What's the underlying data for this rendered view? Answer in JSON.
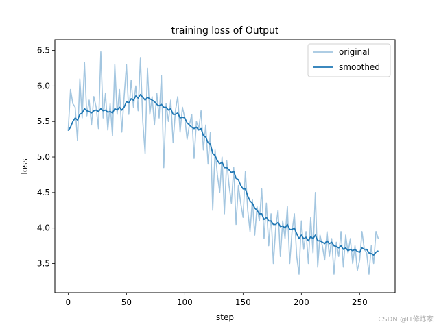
{
  "chart_data": {
    "type": "line",
    "title": "training loss of Output",
    "xlabel": "step",
    "ylabel": "loss",
    "xlim": [
      -11.4,
      280.4
    ],
    "ylim": [
      3.09,
      6.65
    ],
    "xticks": [
      0,
      50,
      100,
      150,
      200,
      250
    ],
    "yticks": [
      3.5,
      4.0,
      4.5,
      5.0,
      5.5,
      6.0,
      6.5
    ],
    "legend_position": "top-right",
    "grid": false,
    "series": [
      {
        "name": "original",
        "color": "#a3c6e0",
        "x": [
          0,
          2,
          4,
          6,
          8,
          10,
          12,
          14,
          16,
          18,
          20,
          22,
          24,
          26,
          28,
          30,
          32,
          34,
          36,
          38,
          40,
          42,
          44,
          46,
          48,
          50,
          52,
          54,
          56,
          58,
          60,
          62,
          64,
          66,
          68,
          70,
          72,
          74,
          76,
          78,
          80,
          82,
          84,
          86,
          88,
          90,
          92,
          94,
          96,
          98,
          100,
          102,
          104,
          106,
          108,
          110,
          112,
          114,
          116,
          118,
          120,
          122,
          124,
          126,
          128,
          130,
          132,
          134,
          136,
          138,
          140,
          142,
          144,
          146,
          148,
          150,
          152,
          154,
          156,
          158,
          160,
          162,
          164,
          166,
          168,
          170,
          172,
          174,
          176,
          178,
          180,
          182,
          184,
          186,
          188,
          190,
          192,
          194,
          196,
          198,
          200,
          202,
          204,
          206,
          208,
          210,
          212,
          214,
          216,
          218,
          220,
          222,
          224,
          226,
          228,
          230,
          232,
          234,
          236,
          238,
          240,
          242,
          244,
          246,
          248,
          250,
          252,
          254,
          256,
          258,
          260,
          262,
          264,
          266
        ],
        "values": [
          5.37,
          5.95,
          5.75,
          5.7,
          5.23,
          6.1,
          5.55,
          6.33,
          5.58,
          5.8,
          5.45,
          5.85,
          5.7,
          5.4,
          6.48,
          5.55,
          5.9,
          5.38,
          5.75,
          5.3,
          6.3,
          5.6,
          5.95,
          5.35,
          5.85,
          6.3,
          5.6,
          6.08,
          5.7,
          6.0,
          5.65,
          6.4,
          5.5,
          5.05,
          6.25,
          5.6,
          5.85,
          5.45,
          5.9,
          5.55,
          6.15,
          4.85,
          5.75,
          5.5,
          5.8,
          5.2,
          5.65,
          5.85,
          5.35,
          5.7,
          5.55,
          5.25,
          5.45,
          5.6,
          4.98,
          5.5,
          5.4,
          5.65,
          5.1,
          5.45,
          4.9,
          5.35,
          4.25,
          5.1,
          4.75,
          4.5,
          5.0,
          4.2,
          4.95,
          4.6,
          4.35,
          4.85,
          4.05,
          4.6,
          4.35,
          4.15,
          4.8,
          4.25,
          3.95,
          4.4,
          3.9,
          4.3,
          4.1,
          4.55,
          3.85,
          4.35,
          3.75,
          4.2,
          3.5,
          4.0,
          4.25,
          3.6,
          4.1,
          3.85,
          4.3,
          3.5,
          3.95,
          4.2,
          3.6,
          3.35,
          4.1,
          3.7,
          3.95,
          3.5,
          4.15,
          3.65,
          4.5,
          3.45,
          3.9,
          3.75,
          3.55,
          3.95,
          3.6,
          3.85,
          3.35,
          3.8,
          3.6,
          3.95,
          3.45,
          3.9,
          3.65,
          3.85,
          3.5,
          3.75,
          3.4,
          3.55,
          3.95,
          3.7,
          3.65,
          3.35,
          3.75,
          3.5,
          3.95,
          3.85
        ]
      },
      {
        "name": "smoothed",
        "color": "#1f77b4",
        "x": [
          0,
          2,
          4,
          6,
          8,
          10,
          12,
          14,
          16,
          18,
          20,
          22,
          24,
          26,
          28,
          30,
          32,
          34,
          36,
          38,
          40,
          42,
          44,
          46,
          48,
          50,
          52,
          54,
          56,
          58,
          60,
          62,
          64,
          66,
          68,
          70,
          72,
          74,
          76,
          78,
          80,
          82,
          84,
          86,
          88,
          90,
          92,
          94,
          96,
          98,
          100,
          102,
          104,
          106,
          108,
          110,
          112,
          114,
          116,
          118,
          120,
          122,
          124,
          126,
          128,
          130,
          132,
          134,
          136,
          138,
          140,
          142,
          144,
          146,
          148,
          150,
          152,
          154,
          156,
          158,
          160,
          162,
          164,
          166,
          168,
          170,
          172,
          174,
          176,
          178,
          180,
          182,
          184,
          186,
          188,
          190,
          192,
          194,
          196,
          198,
          200,
          202,
          204,
          206,
          208,
          210,
          212,
          214,
          216,
          218,
          220,
          222,
          224,
          226,
          228,
          230,
          232,
          234,
          236,
          238,
          240,
          242,
          244,
          246,
          248,
          250,
          252,
          254,
          256,
          258,
          260,
          262,
          264,
          266
        ],
        "values": [
          5.37,
          5.42,
          5.5,
          5.55,
          5.52,
          5.6,
          5.62,
          5.68,
          5.65,
          5.64,
          5.62,
          5.65,
          5.66,
          5.64,
          5.68,
          5.65,
          5.66,
          5.63,
          5.64,
          5.62,
          5.68,
          5.66,
          5.7,
          5.66,
          5.7,
          5.78,
          5.76,
          5.82,
          5.8,
          5.86,
          5.83,
          5.88,
          5.84,
          5.8,
          5.84,
          5.82,
          5.8,
          5.78,
          5.74,
          5.72,
          5.74,
          5.7,
          5.7,
          5.66,
          5.68,
          5.6,
          5.6,
          5.62,
          5.55,
          5.56,
          5.55,
          5.48,
          5.45,
          5.42,
          5.4,
          5.42,
          5.38,
          5.4,
          5.3,
          5.28,
          5.2,
          5.18,
          5.05,
          5.02,
          4.95,
          4.9,
          4.93,
          4.85,
          4.85,
          4.82,
          4.78,
          4.8,
          4.7,
          4.68,
          4.6,
          4.55,
          4.55,
          4.45,
          4.38,
          4.35,
          4.28,
          4.25,
          4.2,
          4.2,
          4.12,
          4.15,
          4.1,
          4.1,
          4.05,
          4.05,
          4.08,
          4.02,
          4.03,
          4.0,
          4.05,
          3.98,
          3.98,
          4.0,
          3.92,
          3.85,
          3.9,
          3.85,
          3.87,
          3.82,
          3.88,
          3.85,
          3.9,
          3.82,
          3.82,
          3.8,
          3.78,
          3.82,
          3.78,
          3.8,
          3.75,
          3.74,
          3.72,
          3.75,
          3.7,
          3.72,
          3.68,
          3.7,
          3.68,
          3.7,
          3.67,
          3.66,
          3.72,
          3.7,
          3.7,
          3.65,
          3.64,
          3.62,
          3.66,
          3.68
        ]
      }
    ]
  },
  "watermark": "CSDN @IT修炼家"
}
